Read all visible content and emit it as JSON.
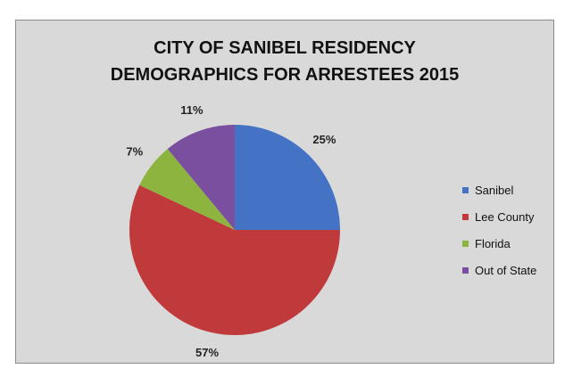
{
  "chart_data": {
    "type": "pie",
    "title_lines": [
      "CITY OF SANIBEL RESIDENCY",
      "DEMOGRAPHICS FOR ARRESTEES 2015"
    ],
    "slices": [
      {
        "label": "Sanibel",
        "value": 25,
        "display": "25%",
        "color": "#4472c4"
      },
      {
        "label": "Lee County",
        "value": 57,
        "display": "57%",
        "color": "#c0393b"
      },
      {
        "label": "Florida",
        "value": 7,
        "display": "7%",
        "color": "#8cb43e"
      },
      {
        "label": "Out of State",
        "value": 11,
        "display": "11%",
        "color": "#7b4fa0"
      }
    ],
    "start_angle_deg": 0,
    "direction": "clockwise",
    "legend_position": "right"
  }
}
